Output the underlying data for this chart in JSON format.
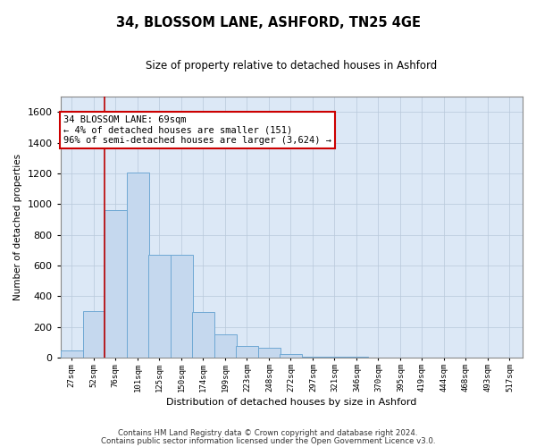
{
  "title_line1": "34, BLOSSOM LANE, ASHFORD, TN25 4GE",
  "title_line2": "Size of property relative to detached houses in Ashford",
  "xlabel": "Distribution of detached houses by size in Ashford",
  "ylabel": "Number of detached properties",
  "bar_color": "#c5d8ee",
  "bar_edge_color": "#6fa8d4",
  "background_color": "#dce8f6",
  "annotation_text": "34 BLOSSOM LANE: 69sqm\n← 4% of detached houses are smaller (151)\n96% of semi-detached houses are larger (3,624) →",
  "vline_x": 76,
  "vline_color": "#bb0000",
  "categories": [
    "27sqm",
    "52sqm",
    "76sqm",
    "101sqm",
    "125sqm",
    "150sqm",
    "174sqm",
    "199sqm",
    "223sqm",
    "248sqm",
    "272sqm",
    "297sqm",
    "321sqm",
    "346sqm",
    "370sqm",
    "395sqm",
    "419sqm",
    "444sqm",
    "468sqm",
    "493sqm",
    "517sqm"
  ],
  "bin_starts": [
    27,
    52,
    76,
    101,
    125,
    150,
    174,
    199,
    223,
    248,
    272,
    297,
    321,
    346,
    370,
    395,
    419,
    444,
    468,
    493,
    517
  ],
  "bin_width": 25,
  "values": [
    50,
    305,
    960,
    1205,
    670,
    670,
    300,
    155,
    75,
    65,
    25,
    10,
    5,
    5,
    0,
    3,
    0,
    0,
    0,
    0,
    3
  ],
  "ylim": [
    0,
    1700
  ],
  "yticks": [
    0,
    200,
    400,
    600,
    800,
    1000,
    1200,
    1400,
    1600
  ],
  "footer_line1": "Contains HM Land Registry data © Crown copyright and database right 2024.",
  "footer_line2": "Contains public sector information licensed under the Open Government Licence v3.0.",
  "annotation_box_facecolor": "#ffffff",
  "annotation_box_edgecolor": "#cc0000"
}
